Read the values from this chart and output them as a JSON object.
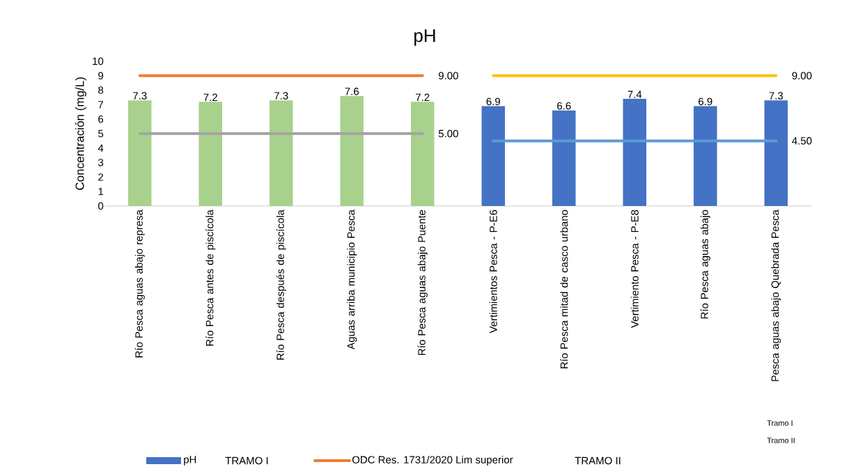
{
  "chart_data": {
    "type": "bar",
    "title": "pH",
    "ylabel": "Concentración (mg/L)",
    "categories": [
      "Río Pesca aguas abajo represa",
      "Río Pesca antes de piscícola",
      "Río Pesca después de piscícola",
      "Aguas arriba municipio Pesca",
      "Río Pesca aguas abajo Puente",
      "Vertimientos Pesca - P-E6",
      "Río Pesca mitad de casco urbano",
      "Vertimiento Pesca - P-E8",
      "Río Pesca aguas abajo",
      "Pesca aguas abajo Quebrada Pesca"
    ],
    "ylim": [
      0,
      10
    ],
    "yticks": [
      0,
      1,
      2,
      3,
      4,
      5,
      6,
      7,
      8,
      9,
      10
    ],
    "grid": false,
    "legend": "bottom",
    "data_labels": true,
    "annotations": [
      "TRAMO I",
      "TRAMO II",
      "Tramo I",
      "Tramo II"
    ],
    "series": [
      {
        "name": "pH",
        "color": "#4472c4",
        "colors": [
          "#a9d18e",
          "#a9d18e",
          "#a9d18e",
          "#a9d18e",
          "#a9d18e",
          "#4472c4",
          "#4472c4",
          "#4472c4",
          "#4472c4",
          "#4472c4"
        ],
        "values": [
          7.3,
          7.2,
          7.3,
          7.6,
          7.2,
          6.9,
          6.6,
          7.4,
          6.9,
          7.3
        ]
      },
      {
        "name": "ODC Res. 1731/2020 Lim superior",
        "type": "line",
        "color": "#ed7d31",
        "values": [
          9,
          9,
          9,
          9,
          9,
          null,
          null,
          null,
          null,
          null
        ],
        "value_labels": [
          null,
          null,
          null,
          null,
          "9.00",
          null,
          null,
          null,
          null,
          null
        ]
      },
      {
        "type": "line",
        "color": "#a5a5a5",
        "values": [
          5,
          5,
          5,
          5,
          5,
          null,
          null,
          null,
          null,
          null
        ],
        "value_labels": [
          null,
          null,
          null,
          null,
          "5.00",
          null,
          null,
          null,
          null,
          null
        ]
      },
      {
        "type": "line",
        "color": "#ffc000",
        "values": [
          null,
          null,
          null,
          null,
          null,
          9,
          9,
          9,
          9,
          9
        ],
        "value_labels": [
          null,
          null,
          null,
          null,
          null,
          null,
          null,
          null,
          null,
          "9.00"
        ]
      },
      {
        "type": "line",
        "color": "#5b9bd5",
        "values": [
          null,
          null,
          null,
          null,
          null,
          4.5,
          4.5,
          4.5,
          4.5,
          4.5
        ],
        "value_labels": [
          null,
          null,
          null,
          null,
          null,
          null,
          null,
          null,
          null,
          "4.50"
        ]
      }
    ]
  }
}
